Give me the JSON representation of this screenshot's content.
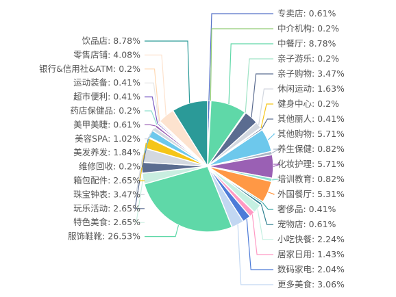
{
  "chart_data": {
    "type": "pie",
    "slices": [
      {
        "name": "专卖店",
        "value": 0.61,
        "label": "0.61%",
        "color": "#5470c6",
        "side": "right"
      },
      {
        "name": "中介机构",
        "value": 0.2,
        "label": "0.2%",
        "color": "#91cc75",
        "side": "right"
      },
      {
        "name": "中餐厅",
        "value": 8.78,
        "label": "8.78%",
        "color": "#5fd8a8",
        "side": "right"
      },
      {
        "name": "亲子游乐",
        "value": 0.2,
        "label": "0.2%",
        "color": "#9fe3c5",
        "side": "right"
      },
      {
        "name": "亲子购物",
        "value": 3.47,
        "label": "3.47%",
        "color": "#5b6c90",
        "side": "right"
      },
      {
        "name": "休闲运动",
        "value": 1.63,
        "label": "1.63%",
        "color": "#d3d8e0",
        "side": "right"
      },
      {
        "name": "健身中心",
        "value": 0.2,
        "label": "0.2%",
        "color": "#f5c518",
        "side": "right"
      },
      {
        "name": "其他丽人",
        "value": 0.41,
        "label": "0.41%",
        "color": "#5d7092",
        "side": "right"
      },
      {
        "name": "其他购物",
        "value": 5.71,
        "label": "5.71%",
        "color": "#6dc8ec",
        "side": "right"
      },
      {
        "name": "养生保健",
        "value": 0.82,
        "label": "0.82%",
        "color": "#aab6c5",
        "side": "right"
      },
      {
        "name": "化妆护理",
        "value": 5.71,
        "label": "5.71%",
        "color": "#9a60b4",
        "side": "right"
      },
      {
        "name": "培训教育",
        "value": 0.82,
        "label": "0.82%",
        "color": "#8fe0cf",
        "side": "right"
      },
      {
        "name": "外国餐厅",
        "value": 5.31,
        "label": "5.31%",
        "color": "#ff9845",
        "side": "right"
      },
      {
        "name": "奢侈品",
        "value": 0.41,
        "label": "0.41%",
        "color": "#3aa6a6",
        "side": "right"
      },
      {
        "name": "宠物店",
        "value": 0.61,
        "label": "0.61%",
        "color": "#2e7f8f",
        "side": "right"
      },
      {
        "name": "小吃快餐",
        "value": 2.24,
        "label": "2.24%",
        "color": "#c5f0e2",
        "side": "right"
      },
      {
        "name": "居家日用",
        "value": 1.43,
        "label": "1.43%",
        "color": "#ff99c3",
        "side": "right"
      },
      {
        "name": "数码家电",
        "value": 2.04,
        "label": "2.04%",
        "color": "#4d7bd8",
        "side": "right"
      },
      {
        "name": "更多美食",
        "value": 3.06,
        "label": "3.06%",
        "color": "#c2d7f2",
        "side": "right"
      },
      {
        "name": "服饰鞋靴",
        "value": 26.53,
        "label": "26.53%",
        "color": "#5fd8a8",
        "side": "left"
      },
      {
        "name": "特色美食",
        "value": 2.65,
        "label": "2.65%",
        "color": "#c9eee0",
        "side": "left"
      },
      {
        "name": "玩乐活动",
        "value": 2.65,
        "label": "2.65%",
        "color": "#5b6c90",
        "side": "left"
      },
      {
        "name": "珠宝钟表",
        "value": 3.47,
        "label": "3.47%",
        "color": "#d3d8e0",
        "side": "left"
      },
      {
        "name": "箱包配件",
        "value": 2.65,
        "label": "2.65%",
        "color": "#f5c518",
        "side": "left"
      },
      {
        "name": "维修回收",
        "value": 0.2,
        "label": "0.2%",
        "color": "#5d7092",
        "side": "left"
      },
      {
        "name": "美发养发",
        "value": 1.84,
        "label": "1.84%",
        "color": "#6dc8ec",
        "side": "left"
      },
      {
        "name": "美容SPA",
        "value": 1.02,
        "label": "1.02%",
        "color": "#d3d8e0",
        "side": "left"
      },
      {
        "name": "美甲美睫",
        "value": 0.61,
        "label": "0.61%",
        "color": "#9a60b4",
        "side": "left"
      },
      {
        "name": "药店保健品",
        "value": 0.2,
        "label": "0.2%",
        "color": "#8fe0cf",
        "side": "left"
      },
      {
        "name": "超市便利",
        "value": 0.41,
        "label": "0.41%",
        "color": "#7b5cc4",
        "side": "left"
      },
      {
        "name": "运动装备",
        "value": 0.41,
        "label": "0.41%",
        "color": "#e6e6e6",
        "side": "left"
      },
      {
        "name": "银行&信用社&ATM",
        "value": 0.2,
        "label": "0.2%",
        "color": "#ffd7b0",
        "side": "left"
      },
      {
        "name": "零售店铺",
        "value": 4.08,
        "label": "4.08%",
        "color": "#fde3cf",
        "side": "left"
      },
      {
        "name": "饮品店",
        "value": 8.78,
        "label": "8.78%",
        "color": "#2b9a98",
        "side": "left"
      }
    ]
  }
}
